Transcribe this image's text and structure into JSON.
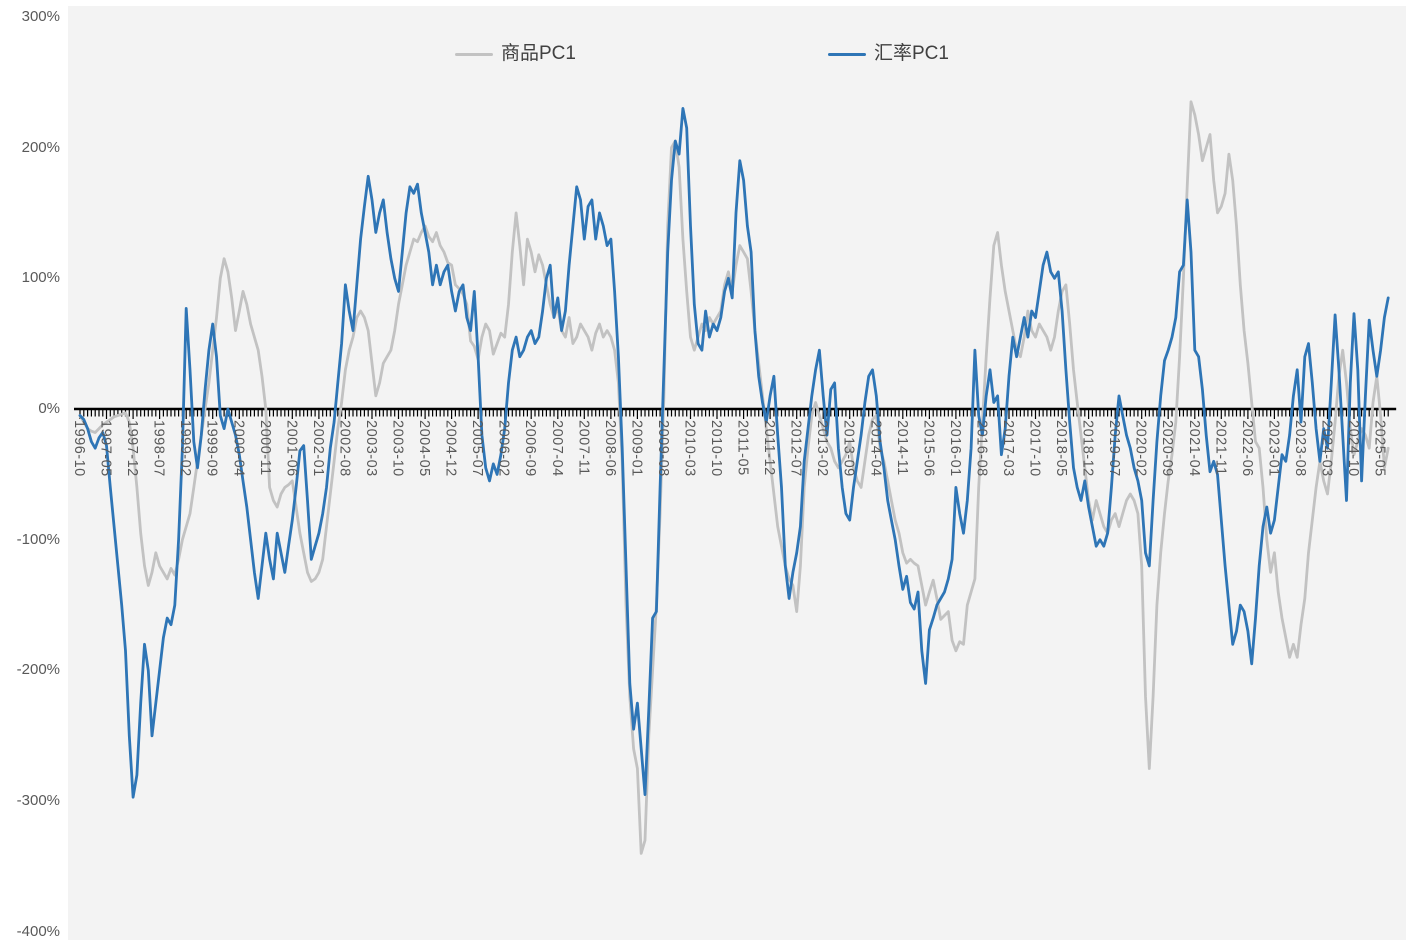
{
  "accent_colors": {
    "exchange_blue": "#2e75b6",
    "commodity_gray": "#c2c2c2",
    "axis_black": "#000000",
    "label_gray": "#595959",
    "plot_bg": "#f3f3f3"
  },
  "chart_data": {
    "type": "line",
    "title": "",
    "xlabel": "",
    "ylabel": "",
    "grid": false,
    "legend_position": "top-center",
    "ylim": [
      -400,
      300
    ],
    "y_tick_labels": [
      "300%",
      "200%",
      "100%",
      "0%",
      "-100%",
      "-200%",
      "-300%",
      "-400%"
    ],
    "y_tick_values": [
      300,
      200,
      100,
      0,
      -100,
      -200,
      -300,
      -400
    ],
    "x_start": "1996-10",
    "x_end": "2025-07",
    "x_tick_interval_months": 7,
    "x_tick_labels": [
      "1996-10",
      "1997-05",
      "1997-12",
      "1998-07",
      "1999-02",
      "1999-09",
      "2000-04",
      "2000-11",
      "2001-06",
      "2002-01",
      "2002-08",
      "2003-03",
      "2003-10",
      "2004-05",
      "2004-12",
      "2005-07",
      "2006-02",
      "2006-09",
      "2007-04",
      "2007-11",
      "2008-06",
      "2009-01",
      "2009-08",
      "2010-03",
      "2010-10",
      "2011-05",
      "2011-12",
      "2012-07",
      "2013-02",
      "2013-09",
      "2014-04",
      "2014-11",
      "2015-06",
      "2016-01",
      "2016-08",
      "2017-03",
      "2017-10",
      "2018-05",
      "2018-12",
      "2019-07",
      "2020-02",
      "2020-09",
      "2021-04",
      "2021-11",
      "2022-06",
      "2023-01",
      "2023-08",
      "2024-03",
      "2024-10",
      "2025-05"
    ],
    "series": [
      {
        "name": "商品PC1",
        "color": "#c2c2c2",
        "unit": "%",
        "start": "1996-10",
        "values": [
          -5,
          -10,
          -15,
          -17,
          -18,
          -15,
          -12,
          -10,
          -8,
          -6,
          -5,
          -4,
          -3,
          -10,
          -30,
          -60,
          -95,
          -120,
          -135,
          -125,
          -110,
          -120,
          -125,
          -130,
          -122,
          -127,
          -115,
          -100,
          -90,
          -80,
          -60,
          -40,
          -20,
          0,
          20,
          45,
          70,
          100,
          115,
          105,
          85,
          60,
          75,
          90,
          80,
          65,
          55,
          45,
          25,
          0,
          -60,
          -70,
          -75,
          -65,
          -60,
          -58,
          -55,
          -75,
          -95,
          -110,
          -125,
          -132,
          -130,
          -125,
          -115,
          -90,
          -65,
          -40,
          -15,
          5,
          30,
          45,
          55,
          70,
          75,
          70,
          60,
          35,
          10,
          20,
          35,
          40,
          45,
          60,
          80,
          95,
          110,
          120,
          130,
          128,
          135,
          140,
          132,
          128,
          135,
          125,
          120,
          112,
          110,
          95,
          92,
          88,
          80,
          52,
          48,
          38,
          55,
          65,
          60,
          42,
          50,
          58,
          55,
          80,
          120,
          150,
          125,
          95,
          130,
          120,
          105,
          118,
          110,
          95,
          80,
          70,
          78,
          60,
          55,
          70,
          50,
          55,
          65,
          60,
          55,
          45,
          58,
          65,
          55,
          60,
          55,
          45,
          20,
          -40,
          -150,
          -220,
          -260,
          -275,
          -340,
          -330,
          -250,
          -200,
          -150,
          -80,
          10,
          140,
          200,
          205,
          185,
          130,
          90,
          55,
          45,
          55,
          65,
          60,
          70,
          65,
          70,
          75,
          95,
          105,
          90,
          110,
          125,
          120,
          115,
          90,
          60,
          35,
          10,
          -15,
          -40,
          -65,
          -90,
          -105,
          -120,
          -130,
          -135,
          -155,
          -120,
          -60,
          -30,
          -5,
          5,
          -5,
          -15,
          -25,
          -30,
          -40,
          -45,
          -40,
          -35,
          -25,
          -45,
          -55,
          -60,
          -40,
          -20,
          -8,
          -5,
          -30,
          -40,
          -55,
          -70,
          -85,
          -95,
          -110,
          -118,
          -115,
          -118,
          -120,
          -135,
          -150,
          -140,
          -131,
          -145,
          -161,
          -158,
          -155,
          -177,
          -185,
          -178,
          -180,
          -150,
          -140,
          -130,
          -60,
          -10,
          40,
          85,
          125,
          135,
          110,
          90,
          75,
          60,
          45,
          40,
          55,
          75,
          60,
          55,
          65,
          60,
          55,
          45,
          55,
          75,
          90,
          95,
          65,
          30,
          5,
          -20,
          -45,
          -70,
          -85,
          -70,
          -80,
          -90,
          -95,
          -85,
          -80,
          -90,
          -80,
          -70,
          -65,
          -70,
          -80,
          -120,
          -220,
          -275,
          -220,
          -150,
          -110,
          -80,
          -55,
          -35,
          -10,
          40,
          100,
          170,
          235,
          225,
          210,
          190,
          200,
          210,
          175,
          150,
          155,
          165,
          195,
          175,
          140,
          95,
          60,
          35,
          5,
          -25,
          -30,
          -60,
          -100,
          -125,
          -110,
          -140,
          -160,
          -175,
          -190,
          -180,
          -190,
          -165,
          -145,
          -110,
          -85,
          -60,
          -40,
          -55,
          -65,
          -40,
          -10,
          25,
          45,
          20,
          -15,
          -35,
          -25,
          -15,
          -20,
          -30,
          5,
          25,
          -5,
          -45,
          -30
        ]
      },
      {
        "name": "汇率PC1",
        "color": "#2e75b6",
        "unit": "%",
        "start": "1996-10",
        "values": [
          -5,
          -8,
          -15,
          -25,
          -30,
          -22,
          -18,
          -28,
          -60,
          -90,
          -120,
          -150,
          -185,
          -250,
          -297,
          -280,
          -225,
          -180,
          -200,
          -250,
          -225,
          -200,
          -175,
          -160,
          -165,
          -150,
          -100,
          -30,
          77,
          30,
          -25,
          -45,
          -20,
          15,
          45,
          65,
          40,
          -5,
          -15,
          0,
          -10,
          -20,
          -35,
          -55,
          -75,
          -100,
          -125,
          -145,
          -120,
          -95,
          -115,
          -130,
          -95,
          -110,
          -125,
          -105,
          -85,
          -60,
          -32,
          -28,
          -70,
          -115,
          -105,
          -95,
          -80,
          -60,
          -30,
          -10,
          20,
          50,
          95,
          75,
          60,
          95,
          130,
          155,
          178,
          160,
          135,
          150,
          160,
          135,
          115,
          100,
          90,
          120,
          150,
          170,
          165,
          172,
          150,
          135,
          120,
          95,
          110,
          95,
          105,
          110,
          90,
          75,
          90,
          95,
          70,
          60,
          90,
          40,
          -20,
          -45,
          -55,
          -42,
          -50,
          -35,
          -15,
          20,
          45,
          55,
          40,
          45,
          55,
          60,
          50,
          55,
          75,
          100,
          110,
          70,
          85,
          60,
          75,
          110,
          140,
          170,
          160,
          130,
          155,
          160,
          130,
          150,
          140,
          125,
          130,
          90,
          40,
          -30,
          -120,
          -210,
          -245,
          -225,
          -260,
          -295,
          -230,
          -160,
          -155,
          -60,
          30,
          120,
          175,
          205,
          195,
          230,
          215,
          140,
          80,
          50,
          45,
          75,
          55,
          65,
          60,
          70,
          90,
          100,
          85,
          150,
          190,
          175,
          140,
          120,
          60,
          25,
          5,
          -10,
          10,
          25,
          -20,
          -60,
          -120,
          -145,
          -125,
          -110,
          -90,
          -40,
          -15,
          10,
          30,
          45,
          10,
          -20,
          15,
          20,
          -30,
          -60,
          -80,
          -85,
          -60,
          -40,
          -20,
          5,
          25,
          30,
          10,
          -25,
          -45,
          -70,
          -85,
          -100,
          -120,
          -138,
          -128,
          -148,
          -153,
          -140,
          -185,
          -210,
          -169,
          -160,
          -150,
          -145,
          -140,
          -130,
          -115,
          -60,
          -80,
          -95,
          -70,
          -30,
          45,
          -5,
          -20,
          10,
          30,
          5,
          10,
          -35,
          -15,
          25,
          55,
          40,
          55,
          70,
          55,
          75,
          70,
          90,
          110,
          120,
          105,
          100,
          105,
          75,
          30,
          -10,
          -45,
          -60,
          -70,
          -55,
          -75,
          -90,
          -105,
          -100,
          -105,
          -95,
          -60,
          -20,
          10,
          -5,
          -20,
          -30,
          -45,
          -55,
          -70,
          -110,
          -120,
          -70,
          -25,
          10,
          37,
          45,
          55,
          70,
          105,
          110,
          160,
          120,
          45,
          40,
          15,
          -20,
          -48,
          -40,
          -50,
          -85,
          -120,
          -150,
          -180,
          -170,
          -150,
          -155,
          -170,
          -195,
          -160,
          -120,
          -90,
          -75,
          -95,
          -85,
          -60,
          -35,
          -40,
          -20,
          10,
          30,
          -10,
          40,
          50,
          20,
          -15,
          -40,
          -15,
          -30,
          20,
          72,
          30,
          -20,
          -70,
          20,
          73,
          30,
          -55,
          10,
          68,
          45,
          25,
          45,
          70,
          85
        ]
      }
    ]
  }
}
